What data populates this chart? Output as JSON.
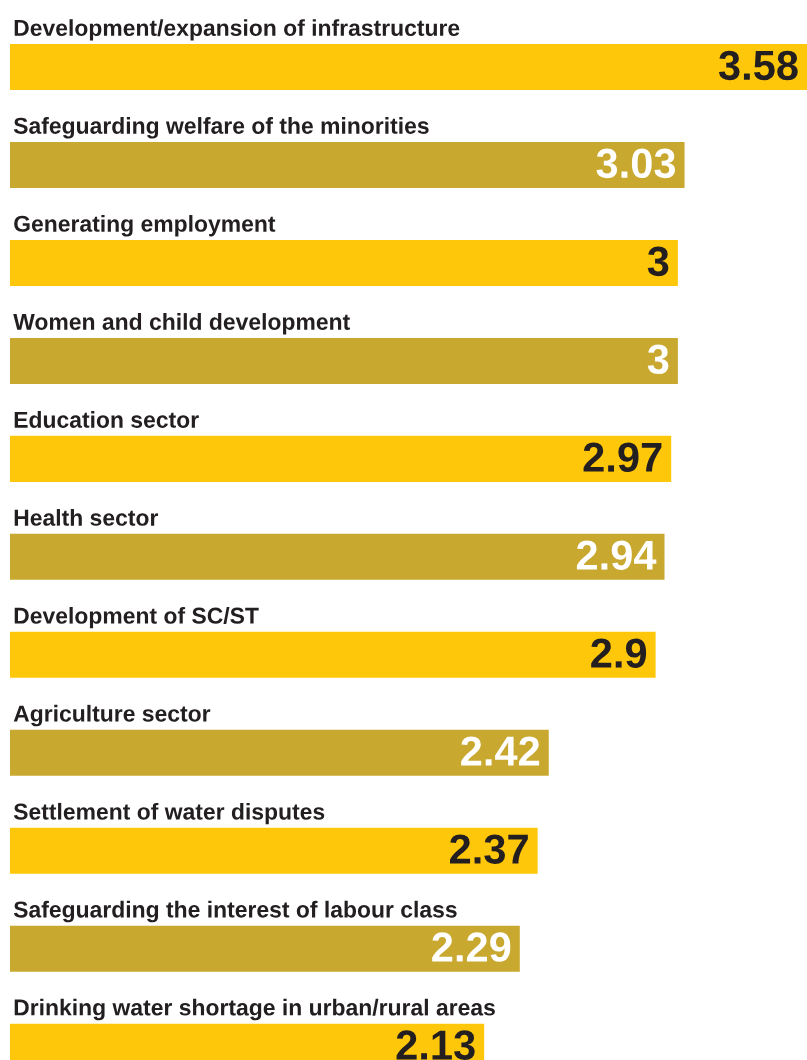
{
  "chart_data": {
    "type": "bar",
    "orientation": "horizontal",
    "data_labels": true,
    "categories": [
      "Development/expansion of infrastructure",
      "Safeguarding welfare of the minorities",
      "Generating employment",
      "Women and child development",
      "Education sector",
      "Health sector",
      "Development of SC/ST",
      "Agriculture sector",
      "Settlement of water disputes",
      "Safeguarding the interest of labour class",
      "Drinking water shortage in urban/rural areas"
    ],
    "values": [
      3.58,
      3.03,
      3,
      3,
      2.97,
      2.94,
      2.9,
      2.42,
      2.37,
      2.29,
      2.13
    ],
    "colors": [
      "#ffc709",
      "#c9a82f",
      "#ffc709",
      "#c9a82f",
      "#ffc709",
      "#c9a82f",
      "#ffc709",
      "#c9a82f",
      "#ffc709",
      "#c9a82f",
      "#ffc709"
    ]
  }
}
